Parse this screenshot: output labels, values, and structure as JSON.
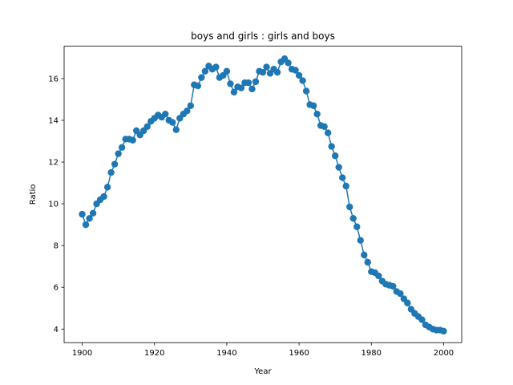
{
  "chart_data": {
    "type": "line",
    "title": "boys and girls : girls and boys",
    "xlabel": "Year",
    "ylabel": "Ratio",
    "xlim": [
      1895,
      2005
    ],
    "ylim": [
      3.35,
      17.55
    ],
    "xticks": [
      1900,
      1920,
      1940,
      1960,
      1980,
      2000
    ],
    "yticks": [
      4,
      6,
      8,
      10,
      12,
      14,
      16
    ],
    "grid": false,
    "legend": "none",
    "series": [
      {
        "color": "#1f77b4",
        "marker": "circle",
        "x": [
          1900,
          1901,
          1902,
          1903,
          1904,
          1905,
          1906,
          1907,
          1908,
          1909,
          1910,
          1911,
          1912,
          1913,
          1914,
          1915,
          1916,
          1917,
          1918,
          1919,
          1920,
          1921,
          1922,
          1923,
          1924,
          1925,
          1926,
          1927,
          1928,
          1929,
          1930,
          1931,
          1932,
          1933,
          1934,
          1935,
          1936,
          1937,
          1938,
          1939,
          1940,
          1941,
          1942,
          1943,
          1944,
          1945,
          1946,
          1947,
          1948,
          1949,
          1950,
          1951,
          1952,
          1953,
          1954,
          1955,
          1956,
          1957,
          1958,
          1959,
          1960,
          1961,
          1962,
          1963,
          1964,
          1965,
          1966,
          1967,
          1968,
          1969,
          1970,
          1971,
          1972,
          1973,
          1974,
          1975,
          1976,
          1977,
          1978,
          1979,
          1980,
          1981,
          1982,
          1983,
          1984,
          1985,
          1986,
          1987,
          1988,
          1989,
          1990,
          1991,
          1992,
          1993,
          1994,
          1995,
          1996,
          1997,
          1998,
          1999,
          2000
        ],
        "y": [
          9.5,
          9.0,
          9.3,
          9.55,
          10.0,
          10.2,
          10.35,
          10.8,
          11.5,
          11.9,
          12.4,
          12.7,
          13.1,
          13.1,
          13.05,
          13.5,
          13.3,
          13.5,
          13.7,
          13.95,
          14.1,
          14.25,
          14.15,
          14.3,
          14.0,
          13.9,
          13.55,
          14.1,
          14.3,
          14.45,
          14.7,
          15.7,
          15.65,
          16.05,
          16.35,
          16.6,
          16.45,
          16.55,
          16.05,
          16.15,
          16.35,
          15.75,
          15.35,
          15.6,
          15.55,
          15.8,
          15.8,
          15.5,
          15.85,
          16.35,
          16.3,
          16.55,
          16.25,
          16.45,
          16.3,
          16.8,
          16.95,
          16.75,
          16.45,
          16.4,
          16.15,
          15.9,
          15.4,
          14.75,
          14.7,
          14.3,
          13.75,
          13.7,
          13.4,
          12.75,
          12.3,
          11.75,
          11.25,
          10.85,
          9.85,
          9.3,
          8.9,
          8.25,
          7.55,
          7.2,
          6.75,
          6.7,
          6.55,
          6.3,
          6.15,
          6.1,
          6.05,
          5.8,
          5.7,
          5.45,
          5.25,
          4.95,
          4.75,
          4.6,
          4.45,
          4.2,
          4.1,
          4.0,
          3.95,
          3.95,
          3.9
        ]
      }
    ]
  }
}
